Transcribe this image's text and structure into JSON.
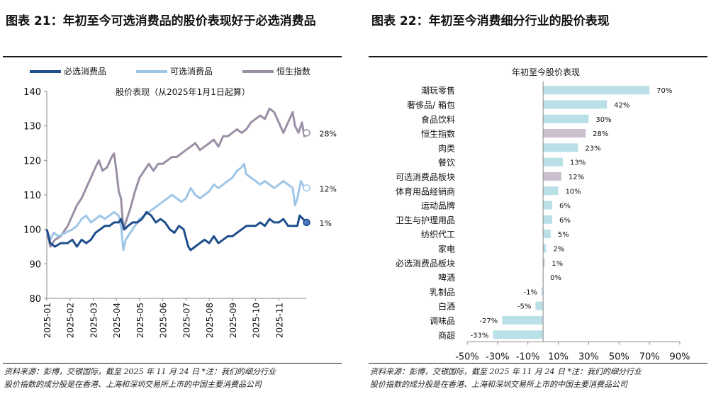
{
  "left": {
    "figure_title": "图表 21：年初至今可选消费品的股价表现好于必选消费品",
    "source_line1": "资料来源：彭博，交银国际，截至 2025 年 11 月 24 日 *注：我们的细分行业",
    "source_line2": "股价指数的成分股是在香港、上海和深圳交易所上市的中国主要消费品公司"
  },
  "right": {
    "figure_title": "图表 22：年初至今消费细分行业的股价表现",
    "source_line1": "资料来源：彭博，交银国际，截至 2025 年 11 月 24 日 *注：我们的细分行业",
    "source_line2": "股价指数的成分股是在香港、上海和深圳交易所上市的中国主要消费品公司"
  },
  "chart_data": [
    {
      "type": "line",
      "title": "股价表现（从2025年1月1日起算）",
      "xlabel": "",
      "ylabel": "",
      "ylim": [
        80,
        140
      ],
      "yticks": [
        80,
        90,
        100,
        110,
        120,
        130,
        140
      ],
      "x_ticks": [
        "2025-01",
        "2025-02",
        "2025-03",
        "2025-04",
        "2025-05",
        "2025-06",
        "2025-07",
        "2025-08",
        "2025-09",
        "2025-10",
        "2025-11"
      ],
      "legend_position": "top",
      "x_note": "x values are months from 2025-01-01 (0 = 2025-01-01, 1 = 2025-02-01, ...)",
      "series": [
        {
          "name": "必选消费品",
          "color": "#1f4e8c",
          "end_label": "1%",
          "points": [
            [
              0,
              100
            ],
            [
              0.15,
              96
            ],
            [
              0.35,
              95
            ],
            [
              0.6,
              96
            ],
            [
              0.9,
              96
            ],
            [
              1.1,
              97
            ],
            [
              1.3,
              95
            ],
            [
              1.5,
              97
            ],
            [
              1.7,
              96
            ],
            [
              1.9,
              97
            ],
            [
              2.1,
              99
            ],
            [
              2.3,
              100
            ],
            [
              2.5,
              101
            ],
            [
              2.7,
              101
            ],
            [
              2.9,
              102
            ],
            [
              3.1,
              102
            ],
            [
              3.2,
              103
            ],
            [
              3.35,
              100
            ],
            [
              3.5,
              101
            ],
            [
              3.7,
              102
            ],
            [
              3.9,
              102
            ],
            [
              4.1,
              103
            ],
            [
              4.3,
              105
            ],
            [
              4.5,
              104
            ],
            [
              4.7,
              102
            ],
            [
              4.9,
              103
            ],
            [
              5.1,
              102
            ],
            [
              5.3,
              100
            ],
            [
              5.5,
              99
            ],
            [
              5.7,
              101
            ],
            [
              5.9,
              100
            ],
            [
              6.1,
              95
            ],
            [
              6.2,
              94
            ],
            [
              6.4,
              95
            ],
            [
              6.6,
              96
            ],
            [
              6.8,
              97
            ],
            [
              7.0,
              96
            ],
            [
              7.2,
              98
            ],
            [
              7.4,
              96
            ],
            [
              7.6,
              97
            ],
            [
              7.8,
              98
            ],
            [
              8.0,
              98
            ],
            [
              8.2,
              99
            ],
            [
              8.4,
              100
            ],
            [
              8.6,
              101
            ],
            [
              8.8,
              101
            ],
            [
              9.0,
              101
            ],
            [
              9.2,
              102
            ],
            [
              9.4,
              101
            ],
            [
              9.6,
              103
            ],
            [
              9.8,
              102
            ],
            [
              10.0,
              102
            ],
            [
              10.2,
              103
            ],
            [
              10.4,
              101
            ],
            [
              10.6,
              101
            ],
            [
              10.8,
              101
            ],
            [
              10.9,
              104
            ],
            [
              11.05,
              103
            ],
            [
              11.2,
              102
            ]
          ]
        },
        {
          "name": "可选消费品",
          "color": "#9ec6e8",
          "end_label": "12%",
          "points": [
            [
              0,
              100
            ],
            [
              0.15,
              97
            ],
            [
              0.3,
              99
            ],
            [
              0.5,
              98
            ],
            [
              0.8,
              99
            ],
            [
              1.1,
              100
            ],
            [
              1.3,
              101
            ],
            [
              1.5,
              103
            ],
            [
              1.7,
              104
            ],
            [
              1.9,
              102
            ],
            [
              2.1,
              103
            ],
            [
              2.3,
              104
            ],
            [
              2.5,
              103
            ],
            [
              2.7,
              104
            ],
            [
              2.9,
              105
            ],
            [
              3.1,
              104
            ],
            [
              3.2,
              101
            ],
            [
              3.3,
              94
            ],
            [
              3.4,
              97
            ],
            [
              3.6,
              99
            ],
            [
              3.8,
              101
            ],
            [
              4.0,
              103
            ],
            [
              4.2,
              104
            ],
            [
              4.4,
              105
            ],
            [
              4.6,
              106
            ],
            [
              4.8,
              107
            ],
            [
              5.0,
              108
            ],
            [
              5.2,
              109
            ],
            [
              5.4,
              110
            ],
            [
              5.6,
              109
            ],
            [
              5.8,
              108
            ],
            [
              6.0,
              109
            ],
            [
              6.2,
              112
            ],
            [
              6.4,
              110
            ],
            [
              6.6,
              109
            ],
            [
              6.8,
              110
            ],
            [
              7.0,
              111
            ],
            [
              7.2,
              113
            ],
            [
              7.4,
              112
            ],
            [
              7.6,
              113
            ],
            [
              7.8,
              114
            ],
            [
              8.0,
              115
            ],
            [
              8.2,
              117
            ],
            [
              8.4,
              118
            ],
            [
              8.5,
              119
            ],
            [
              8.6,
              116
            ],
            [
              8.8,
              115
            ],
            [
              9.0,
              114
            ],
            [
              9.2,
              113
            ],
            [
              9.4,
              114
            ],
            [
              9.6,
              113
            ],
            [
              9.8,
              112
            ],
            [
              10.0,
              113
            ],
            [
              10.2,
              114
            ],
            [
              10.4,
              113
            ],
            [
              10.6,
              112
            ],
            [
              10.7,
              107
            ],
            [
              10.8,
              109
            ],
            [
              10.95,
              114
            ],
            [
              11.1,
              112
            ],
            [
              11.2,
              112
            ]
          ]
        },
        {
          "name": "恒生指数",
          "color": "#9b8fa6",
          "end_label": "28%",
          "points": [
            [
              0,
              100
            ],
            [
              0.15,
              95
            ],
            [
              0.35,
              97
            ],
            [
              0.6,
              98
            ],
            [
              0.9,
              101
            ],
            [
              1.1,
              104
            ],
            [
              1.3,
              107
            ],
            [
              1.5,
              109
            ],
            [
              1.7,
              112
            ],
            [
              1.9,
              115
            ],
            [
              2.1,
              118
            ],
            [
              2.25,
              120
            ],
            [
              2.4,
              117
            ],
            [
              2.6,
              118
            ],
            [
              2.8,
              121
            ],
            [
              2.9,
              122
            ],
            [
              3.0,
              117
            ],
            [
              3.1,
              111
            ],
            [
              3.2,
              109
            ],
            [
              3.3,
              100
            ],
            [
              3.45,
              103
            ],
            [
              3.6,
              106
            ],
            [
              3.8,
              111
            ],
            [
              4.0,
              115
            ],
            [
              4.2,
              117
            ],
            [
              4.4,
              119
            ],
            [
              4.6,
              117
            ],
            [
              4.8,
              119
            ],
            [
              5.0,
              119
            ],
            [
              5.2,
              120
            ],
            [
              5.4,
              121
            ],
            [
              5.6,
              121
            ],
            [
              5.8,
              122
            ],
            [
              6.0,
              123
            ],
            [
              6.2,
              124
            ],
            [
              6.4,
              125
            ],
            [
              6.6,
              123
            ],
            [
              6.8,
              124
            ],
            [
              7.0,
              125
            ],
            [
              7.2,
              126
            ],
            [
              7.4,
              124
            ],
            [
              7.6,
              127
            ],
            [
              7.8,
              127
            ],
            [
              8.0,
              128
            ],
            [
              8.2,
              129
            ],
            [
              8.4,
              128
            ],
            [
              8.6,
              129
            ],
            [
              8.8,
              131
            ],
            [
              9.0,
              132
            ],
            [
              9.2,
              133
            ],
            [
              9.4,
              132
            ],
            [
              9.6,
              135
            ],
            [
              9.8,
              134
            ],
            [
              10.0,
              131
            ],
            [
              10.2,
              128
            ],
            [
              10.4,
              131
            ],
            [
              10.6,
              134
            ],
            [
              10.7,
              130
            ],
            [
              10.85,
              128
            ],
            [
              11.0,
              131
            ],
            [
              11.1,
              127
            ],
            [
              11.2,
              128
            ]
          ]
        }
      ]
    },
    {
      "type": "bar",
      "orientation": "horizontal",
      "title": "年初至今股价表现",
      "xlabel": "",
      "ylabel": "",
      "xlim": [
        -50,
        90
      ],
      "xticks": [
        -50,
        -30,
        -10,
        10,
        30,
        50,
        70,
        90
      ],
      "xtick_labels": [
        "-50%",
        "-30%",
        "-10%",
        "10%",
        "30%",
        "50%",
        "70%",
        "90%"
      ],
      "bar_color": "#b9e0e6",
      "highlight_color": "#cbbfd0",
      "categories": [
        "潮玩零售",
        "奢侈品/ 箱包",
        "食品饮料",
        "恒生指数",
        "肉类",
        "餐饮",
        "可选消费品板块",
        "体育用品经销商",
        "运动品牌",
        "卫生与护理用品",
        "纺织代工",
        "家电",
        "必选消费品板块",
        "啤酒",
        "乳制品",
        "白酒",
        "调味品",
        "商超"
      ],
      "values": [
        70,
        42,
        30,
        28,
        23,
        13,
        12,
        10,
        6,
        6,
        5,
        2,
        1,
        0,
        -1,
        -5,
        -27,
        -33
      ],
      "labels": [
        "70%",
        "42%",
        "30%",
        "28%",
        "23%",
        "13%",
        "12%",
        "10%",
        "6%",
        "6%",
        "5%",
        "2%",
        "1%",
        "0%",
        "-1%",
        "-5%",
        "-27%",
        "-33%"
      ],
      "highlighted": [
        "恒生指数",
        "可选消费品板块",
        "必选消费品板块"
      ]
    }
  ]
}
